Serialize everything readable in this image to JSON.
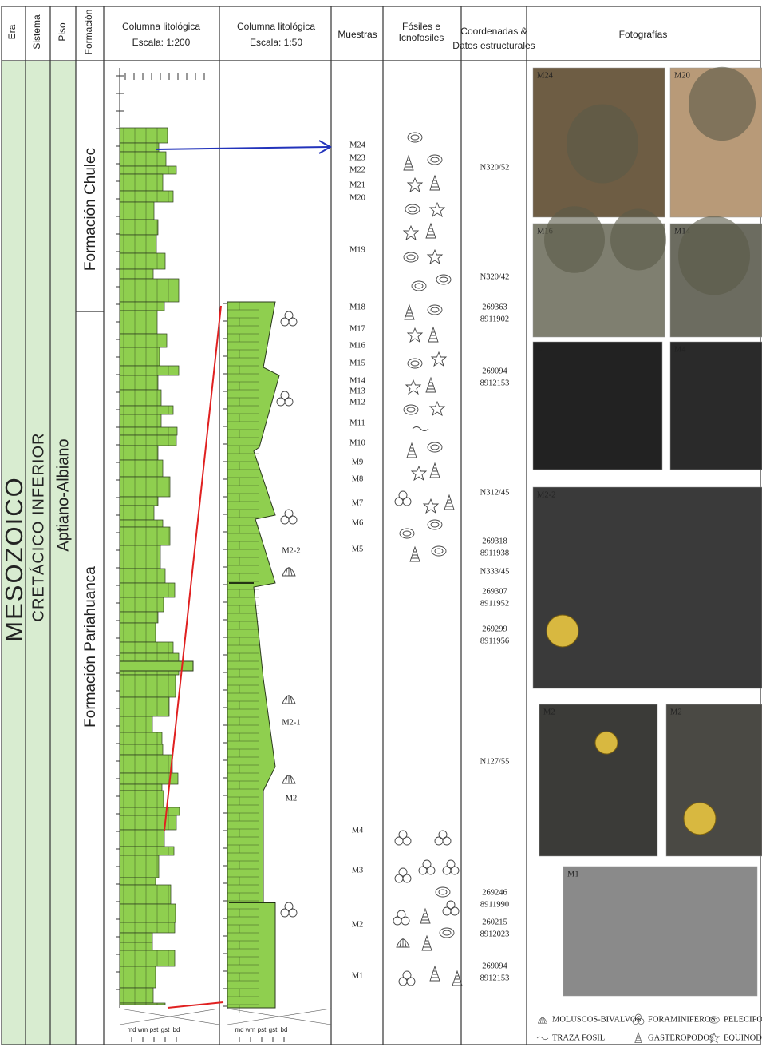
{
  "header": {
    "era": "Era",
    "sistema": "Sistema",
    "piso": "Piso",
    "formacion": "Formación",
    "columna_200": [
      "Columna litológica",
      "Escala: 1:200"
    ],
    "columna_50": [
      "Columna litológica",
      "Escala: 1:50"
    ],
    "muestras": "Muestras",
    "fosiles": [
      "Fósiles e",
      "Icnofosiles"
    ],
    "coordenadas": [
      "Coordenadas &",
      "Datos estructurales"
    ],
    "fotografias": "Fotografías"
  },
  "era": "MESOZOICO",
  "sistema": "CRETÁCICO INFERIOR",
  "piso": "Aptiano-Albiano",
  "formaciones": [
    "Formación Chulec",
    "Formación Pariahuanca"
  ],
  "muestras": [
    "M24",
    "M23",
    "M22",
    "M21",
    "M20",
    "M19",
    "M18",
    "M17",
    "M16",
    "M15",
    "M14",
    "M13",
    "M12",
    "M11",
    "M10",
    "M9",
    "M8",
    "M7",
    "M6",
    "M5",
    "M4",
    "M3",
    "M2",
    "M1"
  ],
  "datos": [
    [
      "N320/52"
    ],
    [
      "N320/42"
    ],
    [
      "269363",
      "8911902"
    ],
    [
      "269094",
      "8912153"
    ],
    [
      "N312/45"
    ],
    [
      "269318",
      "8911938"
    ],
    [
      "N333/45"
    ],
    [
      "269307",
      "8911952"
    ],
    [
      "269299",
      "8911956"
    ],
    [
      "N127/55"
    ],
    [
      "269246",
      "8911990"
    ],
    [
      "260215",
      "8912023"
    ],
    [
      "269094",
      "8912153"
    ]
  ],
  "columna_50_labels": [
    "M2-2",
    "M2-1",
    "M2"
  ],
  "grain_sizes": [
    "md",
    "wm",
    "pst",
    "gst",
    "bd"
  ],
  "photos": [
    "M24",
    "M20",
    "M16",
    "M14",
    "M3",
    "M4",
    "M2-2",
    "M2",
    "M2",
    "M1"
  ],
  "legend": [
    "MOLUSCOS-BIVALVOS",
    "FORAMINIFEROS",
    "PELECIPODOS",
    "TRAZA FOSIL",
    "GASTEROPODOS",
    "EQUINODERMOS"
  ]
}
